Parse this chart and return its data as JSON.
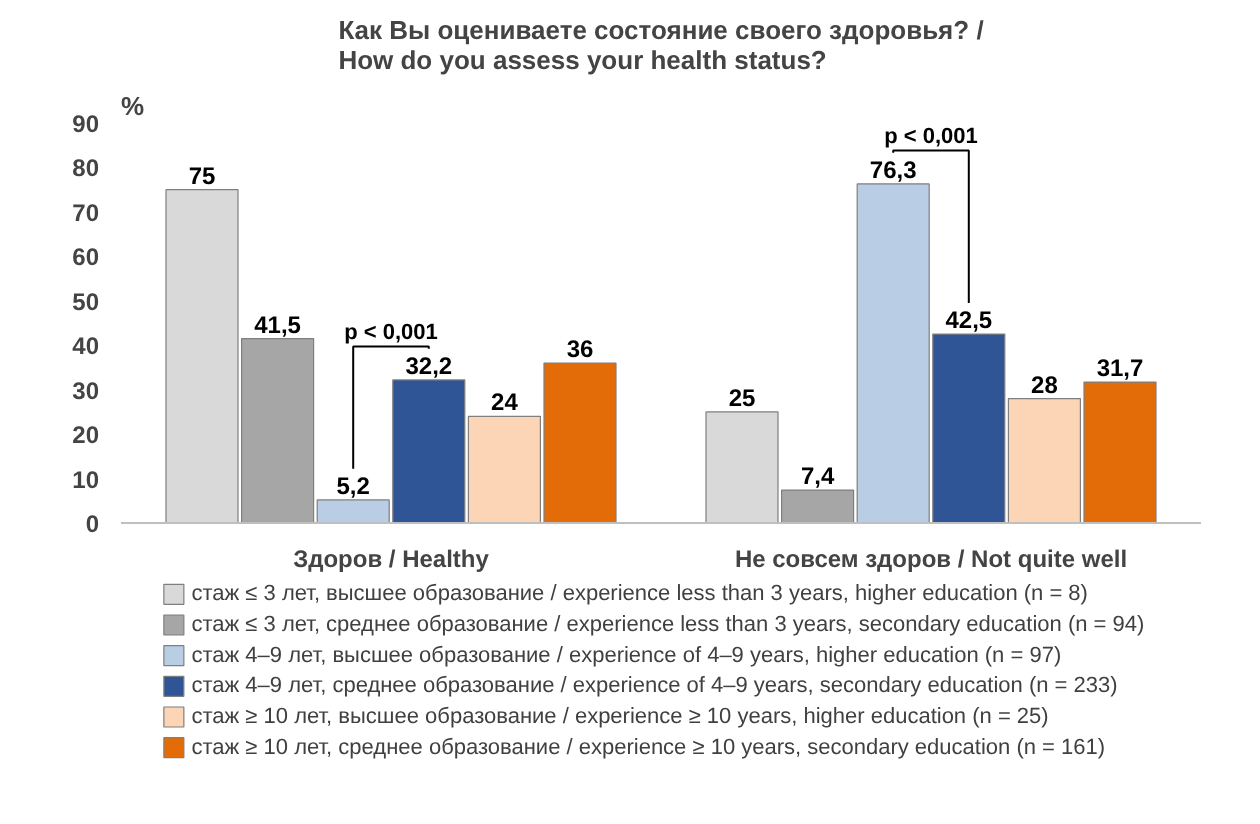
{
  "chart_data": {
    "type": "bar",
    "title": "Как Вы оцениваете состояние своего здоровья? /\nHow do you assess your health status?",
    "ylabel": "%",
    "categories": [
      "Здоров / Healthy",
      "Не совсем здоров / Not quite well"
    ],
    "series": [
      {
        "name": "стаж ≤ 3 лет, высшее образование / experience less than 3 years, higher education (n = 8)",
        "color": "#d9d9d9",
        "values": [
          75,
          25
        ],
        "value_labels": [
          "75",
          "25"
        ]
      },
      {
        "name": "стаж ≤ 3 лет, среднее образование / experience less than 3 years, secondary education (n = 94)",
        "color": "#a6a6a6",
        "values": [
          41.5,
          7.4
        ],
        "value_labels": [
          "41,5",
          "7,4"
        ]
      },
      {
        "name": "стаж 4–9 лет, высшее образование / experience of 4–9 years, higher education (n = 97)",
        "color": "#b9cde5",
        "values": [
          5.2,
          76.3
        ],
        "value_labels": [
          "5,2",
          "76,3"
        ]
      },
      {
        "name": "стаж 4–9 лет, среднее образование / experience of 4–9 years, secondary education (n = 233)",
        "color": "#2f5597",
        "values": [
          32.2,
          42.5
        ],
        "value_labels": [
          "32,2",
          "42,5"
        ]
      },
      {
        "name": "стаж ≥ 10 лет, высшее образование / experience ≥ 10 years, higher education (n = 25)",
        "color": "#fbd5b5",
        "values": [
          24,
          28
        ],
        "value_labels": [
          "24",
          "28"
        ]
      },
      {
        "name": "стаж ≥ 10 лет, среднее образование / experience ≥ 10 years, secondary education (n = 161)",
        "color": "#e36c09",
        "values": [
          36,
          31.7
        ],
        "value_labels": [
          "36",
          "31,7"
        ]
      }
    ],
    "annotations": [
      "p < 0,001",
      "p < 0,001"
    ],
    "ylim": [
      0,
      90
    ],
    "yticks": [
      0,
      10,
      20,
      30,
      40,
      50,
      60,
      70,
      80,
      90
    ],
    "grid": false,
    "legend": "bottom"
  }
}
